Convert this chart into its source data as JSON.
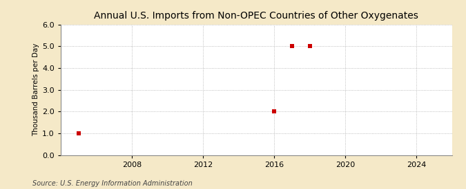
{
  "title": "Annual U.S. Imports from Non-OPEC Countries of Other Oxygenates",
  "ylabel": "Thousand Barrels per Day",
  "source": "Source: U.S. Energy Information Administration",
  "figure_bg_color": "#f5e9c8",
  "plot_bg_color": "#ffffff",
  "data_points": [
    {
      "year": 2005,
      "value": 1.0
    },
    {
      "year": 2016,
      "value": 2.0
    },
    {
      "year": 2017,
      "value": 5.0
    },
    {
      "year": 2018,
      "value": 5.0
    }
  ],
  "marker_color": "#cc0000",
  "marker_size": 4,
  "xmin": 2004,
  "xmax": 2026,
  "ymin": 0.0,
  "ymax": 6.0,
  "xticks": [
    2008,
    2012,
    2016,
    2020,
    2024
  ],
  "yticks": [
    0.0,
    1.0,
    2.0,
    3.0,
    4.0,
    5.0,
    6.0
  ],
  "grid_color": "#aaaaaa",
  "grid_linestyle": ":",
  "title_fontsize": 10,
  "label_fontsize": 7.5,
  "tick_fontsize": 8,
  "source_fontsize": 7
}
